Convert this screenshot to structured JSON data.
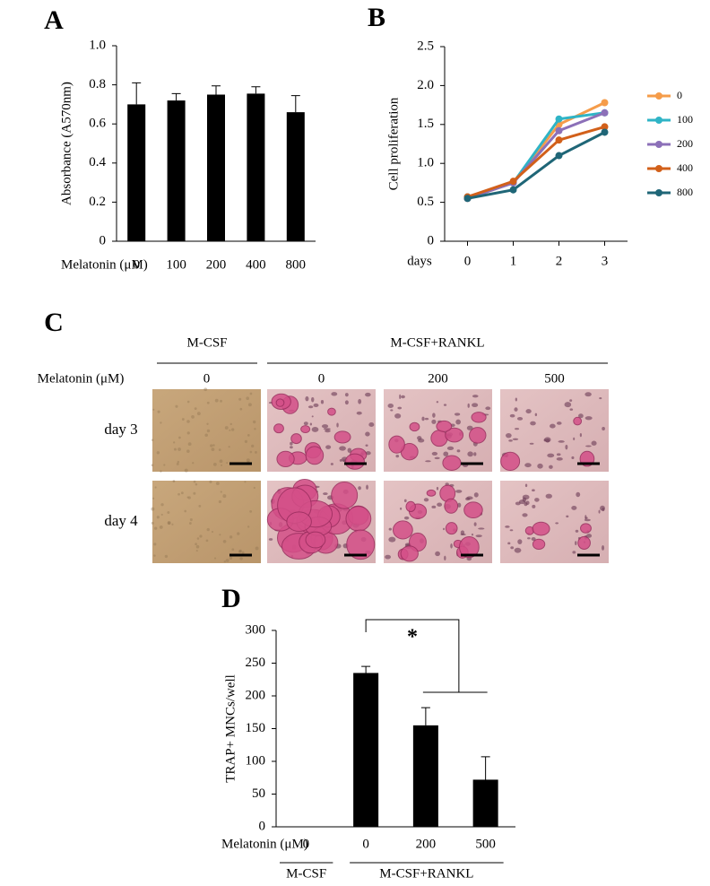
{
  "chart_data": [
    {
      "type": "bar",
      "label": "A",
      "y_label": "Absorbance (A570nm)",
      "x_label": "Melatonin (μM)",
      "categories": [
        "0",
        "100",
        "200",
        "400",
        "800"
      ],
      "values": [
        0.7,
        0.72,
        0.75,
        0.755,
        0.66
      ],
      "errors": [
        0.11,
        0.035,
        0.045,
        0.035,
        0.085
      ],
      "color": "#000000",
      "ylim": [
        0,
        1
      ],
      "yticks": [
        0,
        0.2,
        0.4,
        0.6,
        0.8,
        {
          "value": 1,
          "label": "1.0"
        }
      ]
    },
    {
      "type": "line",
      "label": "B",
      "y_label": "Cell proliferation",
      "x_label": "days",
      "categories": [
        "0",
        "1",
        "2",
        "3"
      ],
      "legend": "right",
      "series": [
        {
          "name": "0",
          "color": "#f59c4a",
          "values": [
            0.55,
            0.75,
            1.5,
            1.78
          ]
        },
        {
          "name": "100",
          "color": "#2fb4c6",
          "values": [
            0.57,
            0.75,
            1.57,
            1.65
          ]
        },
        {
          "name": "200",
          "color": "#8c70b8",
          "values": [
            0.55,
            0.75,
            1.42,
            1.65
          ]
        },
        {
          "name": "400",
          "color": "#d2601a",
          "values": [
            0.57,
            0.77,
            1.3,
            1.47
          ]
        },
        {
          "name": "800",
          "color": "#1f6677",
          "values": [
            0.55,
            0.66,
            1.1,
            1.4
          ]
        }
      ],
      "ylim": [
        0,
        2.5
      ],
      "yticks": [
        0,
        0.5,
        {
          "value": 1,
          "label": "1.0"
        },
        1.5,
        {
          "value": 2,
          "label": "2.0"
        },
        2.5
      ]
    },
    {
      "type": "bar",
      "label": "D",
      "y_label": "TRAP+ MNCs/well",
      "x_label": "Melatonin (μM)",
      "categories": [
        "0",
        "0",
        "200",
        "500"
      ],
      "values": [
        0,
        235,
        155,
        72
      ],
      "errors": [
        0,
        10,
        27,
        35
      ],
      "color": "#000000",
      "group_labels": [
        "M-CSF",
        "M-CSF+RANKL"
      ],
      "annotation": "*",
      "ylim": [
        0,
        300
      ],
      "yticks": [
        0,
        50,
        100,
        150,
        200,
        250,
        300
      ]
    }
  ],
  "panel_c": {
    "label": "C",
    "groups": [
      "M-CSF",
      "M-CSF+RANKL"
    ],
    "row_header": "Melatonin (μM)",
    "columns": [
      "0",
      "0",
      "200",
      "500"
    ],
    "rows": [
      "day 3",
      "day 4"
    ]
  }
}
